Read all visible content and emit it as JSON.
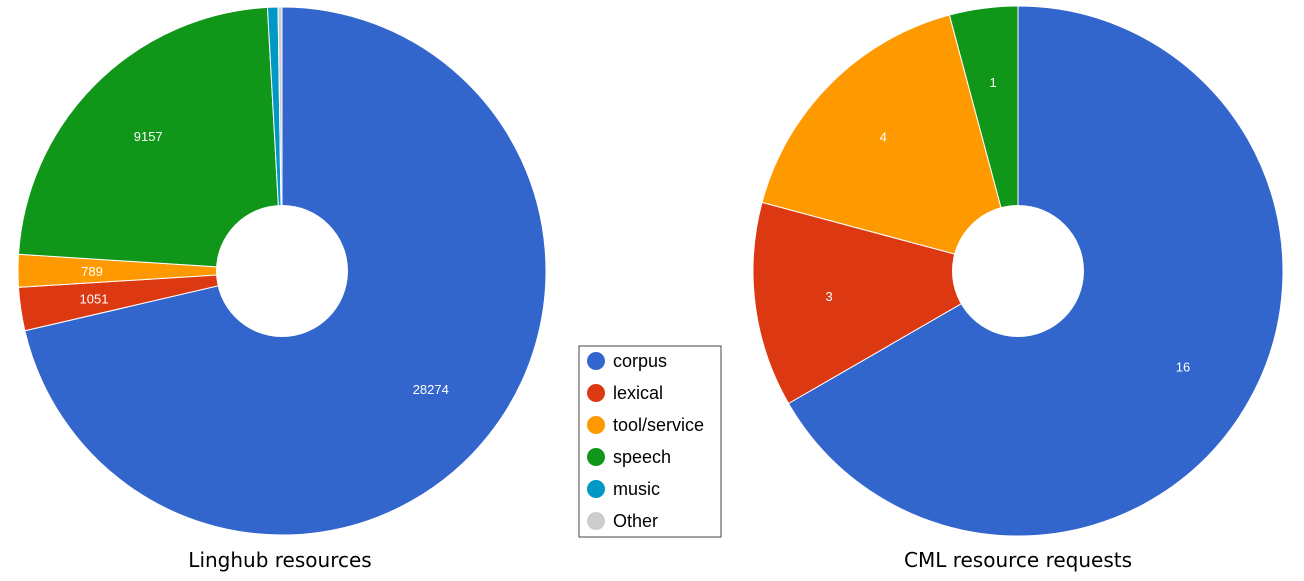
{
  "chart_data": [
    {
      "type": "pie",
      "title": "Linghub resources",
      "categories": [
        "corpus",
        "lexical",
        "tool/service",
        "speech",
        "music",
        "Other"
      ],
      "values": [
        28274,
        1051,
        789,
        9157,
        253,
        95
      ],
      "data_labels": [
        "28274",
        "1051",
        "789",
        "9157",
        "",
        ""
      ],
      "colors": [
        "#3366cc",
        "#dc3912",
        "#ff9900",
        "#109618",
        "#0099c6",
        "#cccccc"
      ],
      "donut": true
    },
    {
      "type": "pie",
      "title": "CML resource requests",
      "categories": [
        "corpus",
        "lexical",
        "tool/service",
        "speech",
        "music",
        "Other"
      ],
      "values": [
        16,
        3,
        4,
        1,
        0,
        0
      ],
      "data_labels": [
        "16",
        "3",
        "4",
        "1",
        "",
        ""
      ],
      "colors": [
        "#3366cc",
        "#dc3912",
        "#ff9900",
        "#109618",
        "#0099c6",
        "#cccccc"
      ],
      "donut": true
    }
  ],
  "legend": {
    "placement": "center",
    "items": [
      {
        "label": "corpus",
        "color": "#3366cc"
      },
      {
        "label": "lexical",
        "color": "#dc3912"
      },
      {
        "label": "tool/service",
        "color": "#ff9900"
      },
      {
        "label": "speech",
        "color": "#109618"
      },
      {
        "label": "music",
        "color": "#0099c6"
      },
      {
        "label": "Other",
        "color": "#cccccc"
      }
    ]
  }
}
